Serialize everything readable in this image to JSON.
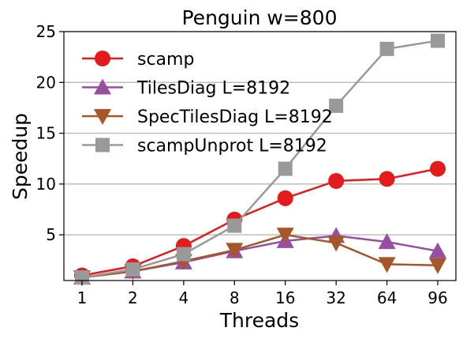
{
  "chart_data": {
    "type": "line",
    "title": "Penguin w=800",
    "xlabel": "Threads",
    "ylabel": "Speedup",
    "categories": [
      "1",
      "2",
      "4",
      "8",
      "16",
      "32",
      "64",
      "96"
    ],
    "ylim": [
      0.5,
      25
    ],
    "yticks": [
      5,
      10,
      15,
      20,
      25
    ],
    "grid": "horizontal",
    "legend_position": "top-left",
    "series": [
      {
        "name": "scamp",
        "marker": "circle",
        "color": "#e41a1c",
        "values": [
          1.0,
          1.9,
          3.9,
          6.5,
          8.6,
          10.3,
          10.5,
          11.5
        ]
      },
      {
        "name": "TilesDiag L=8192",
        "marker": "triangle-up",
        "color": "#984ea3",
        "values": [
          0.8,
          1.4,
          2.3,
          3.4,
          4.4,
          4.9,
          4.3,
          3.4
        ]
      },
      {
        "name": "SpecTilesDiag L=8192",
        "marker": "triangle-down",
        "color": "#a65628",
        "values": [
          0.8,
          1.4,
          2.4,
          3.5,
          5.0,
          4.2,
          2.1,
          2.0
        ]
      },
      {
        "name": "scampUnprot L=8192",
        "marker": "square",
        "color": "#999999",
        "values": [
          0.8,
          1.6,
          3.1,
          5.9,
          11.5,
          17.7,
          23.3,
          24.1
        ]
      }
    ]
  }
}
